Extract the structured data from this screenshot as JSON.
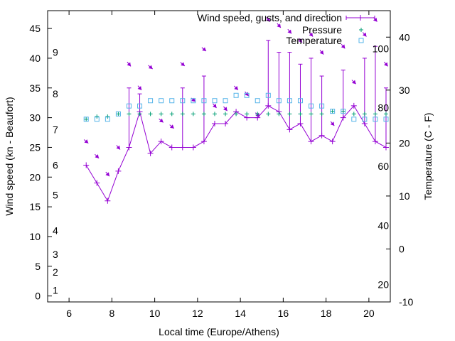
{
  "chart_data": {
    "type": "line",
    "title": "",
    "xlabel": "Local time (Europe/Athens)",
    "ylabel": "Wind speed (kn - Beaufort)",
    "y2label": "Temperature (C - F)",
    "xlim": [
      5,
      21
    ],
    "ylim": [
      -1,
      48
    ],
    "y2lim": [
      -10,
      45
    ],
    "xticks": [
      6,
      8,
      10,
      12,
      14,
      16,
      18,
      20
    ],
    "yticks": [
      0,
      5,
      10,
      15,
      20,
      25,
      30,
      35,
      40,
      45
    ],
    "y2ticks": [
      -10,
      0,
      10,
      20,
      30,
      40
    ],
    "beaufort_labels": [
      {
        "label": "1",
        "kn": 1
      },
      {
        "label": "2",
        "kn": 4
      },
      {
        "label": "3",
        "kn": 7
      },
      {
        "label": "4",
        "kn": 11
      },
      {
        "label": "5",
        "kn": 17
      },
      {
        "label": "6",
        "kn": 22
      },
      {
        "label": "7",
        "kn": 28
      },
      {
        "label": "8",
        "kn": 34
      },
      {
        "label": "9",
        "kn": 41
      }
    ],
    "fahrenheit_labels": [
      {
        "label": "20",
        "c": -6.7
      },
      {
        "label": "40",
        "c": 4.4
      },
      {
        "label": "60",
        "c": 15.6
      },
      {
        "label": "80",
        "c": 26.7
      },
      {
        "label": "100",
        "c": 37.8
      }
    ],
    "legend": {
      "position": "top-right",
      "entries": [
        "Wind speed, gusts, and direction",
        "Pressure",
        "Temperature"
      ]
    },
    "colors": {
      "wind": "#9400d3",
      "pressure": "#009e73",
      "temperature": "#56b4e9",
      "axis": "#000000"
    },
    "series": [
      {
        "name": "Wind speed, gusts, and direction",
        "x": [
          6.8,
          7.3,
          7.8,
          8.3,
          8.8,
          9.3,
          9.8,
          10.3,
          10.8,
          11.3,
          11.8,
          12.3,
          12.8,
          13.3,
          13.8,
          14.3,
          14.8,
          15.3,
          15.8,
          16.3,
          16.8,
          17.3,
          17.8,
          18.3,
          18.8,
          19.3,
          19.8,
          20.3,
          20.8
        ],
        "speed": [
          22,
          19,
          16,
          21,
          25,
          31,
          24,
          26,
          25,
          25,
          25,
          26,
          29,
          29,
          31,
          30,
          30,
          32,
          31,
          28,
          29,
          26,
          27,
          26,
          30,
          32,
          29,
          26,
          25
        ],
        "gust": [
          22,
          19,
          16,
          21,
          35,
          34,
          24,
          26,
          25,
          35,
          25,
          37,
          29,
          29,
          31,
          30,
          30,
          43,
          41,
          41,
          39,
          40,
          37,
          26,
          38,
          32,
          40,
          42,
          35
        ],
        "direction_deg": [
          310,
          315,
          320,
          320,
          320,
          320,
          310,
          310,
          310,
          310,
          310,
          310,
          320,
          320,
          315,
          320,
          315,
          320,
          320,
          320,
          320,
          320,
          320,
          320,
          320,
          315,
          320,
          320,
          320
        ],
        "arrow_y": [
          26,
          23.5,
          20.5,
          25,
          39,
          35,
          38.5,
          29.5,
          28.5,
          39,
          33,
          41.5,
          32,
          31.5,
          35,
          34,
          30.5,
          46.5,
          45.5,
          44.5,
          43,
          44,
          41,
          29,
          42,
          36,
          44,
          46.5,
          39
        ]
      },
      {
        "name": "Pressure",
        "x": [
          6.8,
          7.3,
          7.8,
          8.3,
          8.8,
          9.3,
          9.8,
          10.3,
          10.8,
          11.3,
          11.8,
          12.3,
          12.8,
          13.3,
          13.8,
          14.3,
          14.8,
          15.3,
          15.8,
          16.3,
          16.8,
          17.3,
          17.8,
          18.3,
          18.8,
          19.3,
          19.8,
          20.3,
          20.8
        ],
        "values_on_y2": [
          24.5,
          25,
          25,
          25.5,
          25.5,
          25.5,
          25.5,
          25.5,
          25.5,
          25.5,
          25.5,
          25.5,
          25.5,
          25.5,
          25.5,
          25.5,
          25.5,
          25.5,
          25.5,
          25.5,
          25.5,
          25.5,
          25.5,
          26,
          26,
          25.5,
          25.5,
          25.5,
          25.5
        ]
      },
      {
        "name": "Temperature",
        "x": [
          6.8,
          7.3,
          7.8,
          8.3,
          8.8,
          9.3,
          9.8,
          10.3,
          10.8,
          11.3,
          11.8,
          12.3,
          12.8,
          13.3,
          13.8,
          14.3,
          14.8,
          15.3,
          15.8,
          16.3,
          16.8,
          17.3,
          17.8,
          18.3,
          18.8,
          19.3,
          19.8,
          20.3,
          20.8
        ],
        "values": [
          24.5,
          24.5,
          24.5,
          25.5,
          27,
          27,
          28,
          28,
          28,
          28,
          28,
          28,
          28,
          28,
          29,
          29,
          28,
          29,
          28,
          28,
          28,
          27,
          27,
          26,
          26,
          24.5,
          24.5,
          24.5,
          24.5
        ]
      }
    ]
  }
}
